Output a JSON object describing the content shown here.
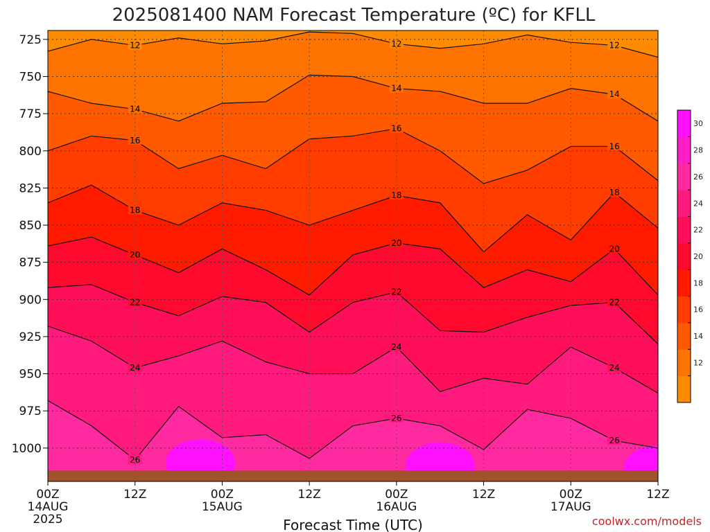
{
  "chart_data": {
    "type": "heatmap",
    "title": "2025081400 NAM Forecast Temperature (ºC) for KFLL",
    "xlabel": "Forecast Time (UTC)",
    "ylabel": "",
    "credit": "coolwx.com/models",
    "y_ticks": [
      "725",
      "750",
      "775",
      "800",
      "825",
      "850",
      "875",
      "900",
      "925",
      "950",
      "975",
      "1000"
    ],
    "y_values": [
      725,
      750,
      775,
      800,
      825,
      850,
      875,
      900,
      925,
      950,
      975,
      1000
    ],
    "ylim": [
      719,
      1015
    ],
    "x_hours": [
      0,
      12,
      24,
      36,
      48,
      60,
      72,
      84
    ],
    "x_ticks": [
      {
        "hour": 0,
        "label": "00Z",
        "date": "14AUG",
        "year": "2025"
      },
      {
        "hour": 12,
        "label": "12Z",
        "date": "",
        "year": ""
      },
      {
        "hour": 24,
        "label": "00Z",
        "date": "15AUG",
        "year": ""
      },
      {
        "hour": 36,
        "label": "12Z",
        "date": "",
        "year": ""
      },
      {
        "hour": 48,
        "label": "00Z",
        "date": "16AUG",
        "year": ""
      },
      {
        "hour": 60,
        "label": "12Z",
        "date": "",
        "year": ""
      },
      {
        "hour": 72,
        "label": "00Z",
        "date": "17AUG",
        "year": ""
      },
      {
        "hour": 84,
        "label": "12Z",
        "date": "",
        "year": ""
      }
    ],
    "xlim": [
      0,
      84
    ],
    "colorbar": {
      "labels": [
        "12",
        "14",
        "16",
        "18",
        "20",
        "22",
        "24",
        "26",
        "28",
        "30"
      ],
      "levels": [
        12,
        14,
        16,
        18,
        20,
        22,
        24,
        26,
        28,
        30,
        32
      ],
      "colors": [
        "#ff8c00",
        "#ff7300",
        "#ff5a00",
        "#ff3d00",
        "#ff1a00",
        "#ff0a2e",
        "#ff0f5a",
        "#ff1a7d",
        "#ff2aa0",
        "#ff1ec8",
        "#ff10ff"
      ]
    },
    "ground_color": "#a0522d",
    "contours": [
      {
        "level": 12,
        "hours": [
          0,
          6,
          12,
          18,
          24,
          30,
          36,
          42,
          48,
          54,
          60,
          66,
          72,
          78,
          84
        ],
        "pressure": [
          733,
          725,
          729,
          724,
          728,
          726,
          720,
          721,
          728,
          731,
          728,
          722,
          727,
          729,
          737
        ]
      },
      {
        "level": 14,
        "hours": [
          0,
          6,
          12,
          18,
          24,
          30,
          36,
          42,
          48,
          54,
          60,
          66,
          72,
          78,
          84
        ],
        "pressure": [
          760,
          768,
          772,
          780,
          768,
          767,
          749,
          750,
          758,
          760,
          768,
          768,
          758,
          762,
          780
        ]
      },
      {
        "level": 16,
        "hours": [
          0,
          6,
          12,
          18,
          24,
          30,
          36,
          42,
          48,
          54,
          60,
          66,
          72,
          78,
          84
        ],
        "pressure": [
          800,
          790,
          793,
          812,
          803,
          812,
          792,
          790,
          785,
          800,
          822,
          813,
          797,
          797,
          820
        ]
      },
      {
        "level": 18,
        "hours": [
          0,
          6,
          12,
          18,
          24,
          30,
          36,
          42,
          48,
          54,
          60,
          66,
          72,
          78,
          84
        ],
        "pressure": [
          835,
          823,
          840,
          850,
          835,
          840,
          850,
          840,
          830,
          835,
          868,
          843,
          860,
          828,
          852
        ]
      },
      {
        "level": 20,
        "hours": [
          0,
          6,
          12,
          18,
          24,
          30,
          36,
          42,
          48,
          54,
          60,
          66,
          72,
          78,
          84
        ],
        "pressure": [
          864,
          858,
          870,
          882,
          866,
          880,
          897,
          870,
          862,
          866,
          892,
          880,
          888,
          866,
          897
        ]
      },
      {
        "level": 22,
        "hours": [
          0,
          6,
          12,
          18,
          24,
          30,
          36,
          42,
          48,
          54,
          60,
          66,
          72,
          78,
          84
        ],
        "pressure": [
          892,
          890,
          902,
          911,
          898,
          902,
          922,
          902,
          895,
          921,
          922,
          912,
          904,
          902,
          930
        ]
      },
      {
        "level": 24,
        "hours": [
          0,
          6,
          12,
          18,
          24,
          30,
          36,
          42,
          48,
          54,
          60,
          66,
          72,
          78,
          84
        ],
        "pressure": [
          918,
          928,
          946,
          938,
          928,
          942,
          950,
          950,
          932,
          962,
          953,
          957,
          932,
          946,
          963
        ]
      },
      {
        "level": 26,
        "hours": [
          0,
          6,
          12,
          18,
          24,
          30,
          36,
          42,
          48,
          54,
          60,
          66,
          72,
          78,
          84
        ],
        "pressure": [
          968,
          985,
          1008,
          972,
          993,
          991,
          1007,
          985,
          980,
          985,
          1001,
          974,
          980,
          995,
          1000
        ]
      }
    ]
  }
}
